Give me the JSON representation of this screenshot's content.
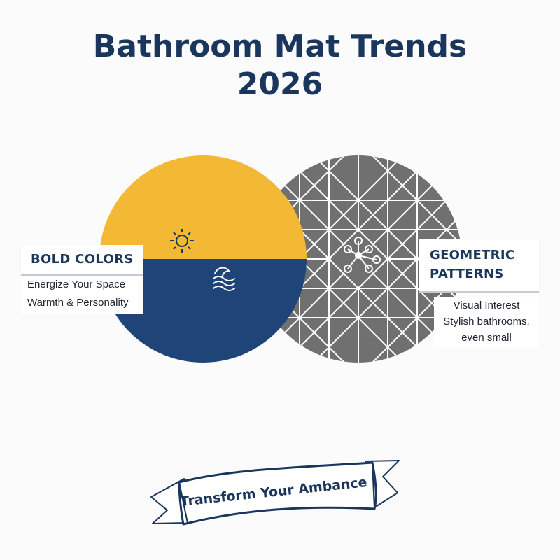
{
  "title": {
    "line1": "Bathroom Mat Trends",
    "line2": "2026"
  },
  "bold_colors": {
    "heading": "BOLD COLORS",
    "lines": [
      "Energize Your Space",
      "Warmth & Personality"
    ],
    "icons": [
      "sun-icon",
      "wave-icon"
    ],
    "colors": {
      "top": "#f3b934",
      "bottom": "#1f4578"
    }
  },
  "geometric_patterns": {
    "heading_line1": "GEOMETRIC",
    "heading_line2": "PATTERNS",
    "lines": [
      "Visual Interest",
      "Stylish bathrooms,",
      "even small"
    ],
    "icons": [
      "network-icon"
    ],
    "colors": {
      "fill": "#707070",
      "pattern": "#ffffff"
    }
  },
  "banner": {
    "text": "Transform Your Ambance"
  },
  "colors": {
    "title": "#1b365d"
  }
}
